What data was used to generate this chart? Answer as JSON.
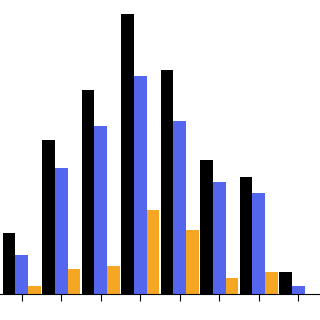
{
  "groups": 8,
  "black_values": [
    22,
    55,
    73,
    100,
    80,
    48,
    42,
    8
  ],
  "blue_values": [
    14,
    45,
    60,
    78,
    62,
    40,
    36,
    3
  ],
  "orange_values": [
    3,
    9,
    10,
    30,
    23,
    6,
    8,
    0
  ],
  "bar_colors": {
    "black": "#000000",
    "blue": "#5566ee",
    "orange": "#f5a623"
  },
  "background_color": "#ffffff",
  "bar_width": 0.32,
  "ylim": [
    0,
    105
  ],
  "figsize": [
    3.2,
    3.2
  ],
  "dpi": 100
}
